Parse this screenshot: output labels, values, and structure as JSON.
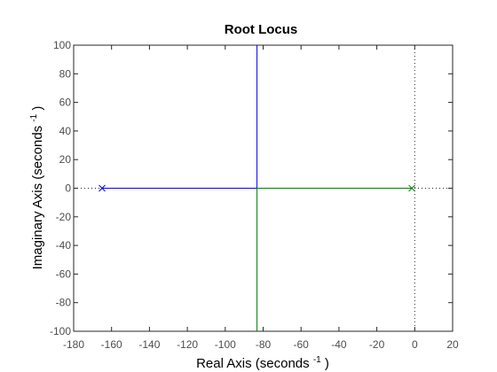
{
  "chart_data": {
    "type": "line",
    "title": "Root Locus",
    "xlabel_main": "Real Axis (seconds",
    "xlabel_sup": "-1",
    "xlabel_close": ")",
    "ylabel_main": "Imaginary Axis (seconds",
    "ylabel_sup": "-1",
    "ylabel_close": ")",
    "xlim": [
      -180,
      20
    ],
    "ylim": [
      -100,
      100
    ],
    "xticks": [
      -180,
      -160,
      -140,
      -120,
      -100,
      -80,
      -60,
      -40,
      -20,
      0,
      20
    ],
    "yticks": [
      -100,
      -80,
      -60,
      -40,
      -20,
      0,
      20,
      40,
      60,
      80,
      100
    ],
    "grid": false,
    "poles": [
      {
        "x": -165,
        "y": 0
      },
      {
        "x": -1.5,
        "y": 0
      }
    ],
    "breakaway_point": -83.25,
    "series": [
      {
        "color": "#0000ff",
        "points": [
          [
            -165,
            0
          ],
          [
            -83.25,
            0
          ],
          [
            -83.25,
            100
          ]
        ]
      },
      {
        "color": "#008000",
        "points": [
          [
            -1.5,
            0
          ],
          [
            -83.25,
            0
          ],
          [
            -83.25,
            -100
          ]
        ]
      }
    ],
    "colors": {
      "axis": "#262626",
      "tick_label": "#4d4d4d",
      "dotted_axes": "#262626"
    }
  }
}
